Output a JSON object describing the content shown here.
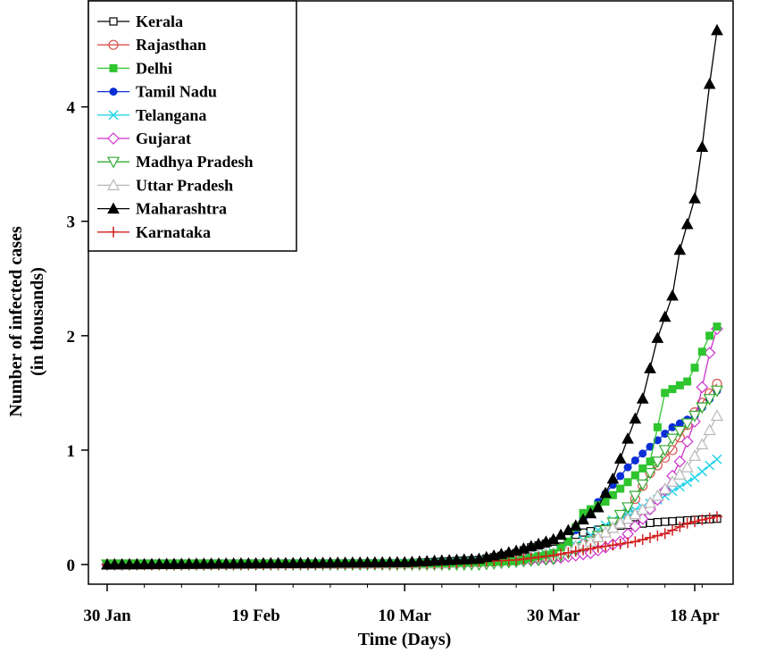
{
  "chart_data": {
    "type": "line",
    "x_axis": {
      "type": "date",
      "label": "Time (Days)",
      "ticks": [
        "30 Jan",
        "19 Feb",
        "10 Mar",
        "30 Mar",
        "18 Apr"
      ],
      "range": [
        "2020-01-30",
        "2020-04-21"
      ]
    },
    "y_axis": {
      "label": "Number of infected cases",
      "label_line2": "(in thousands)",
      "ticks": [
        "0",
        "1",
        "2",
        "3",
        "4"
      ],
      "range": [
        0,
        4.7
      ]
    },
    "grid": false,
    "legend_position": "top-left",
    "series": [
      {
        "name": "Kerala",
        "color": "#000000",
        "marker": "square-open",
        "points": [
          [
            "2020-01-30",
            0
          ],
          [
            "2020-03-10",
            0.01
          ],
          [
            "2020-03-20",
            0.04
          ],
          [
            "2020-03-25",
            0.1
          ],
          [
            "2020-03-27",
            0.15
          ],
          [
            "2020-03-30",
            0.2
          ],
          [
            "2020-04-03",
            0.28
          ],
          [
            "2020-04-08",
            0.34
          ],
          [
            "2020-04-13",
            0.37
          ],
          [
            "2020-04-18",
            0.39
          ],
          [
            "2020-04-21",
            0.4
          ]
        ]
      },
      {
        "name": "Rajasthan",
        "color": "#d9534f",
        "marker": "circle-open",
        "points": [
          [
            "2020-01-30",
            0
          ],
          [
            "2020-03-15",
            0.01
          ],
          [
            "2020-03-25",
            0.04
          ],
          [
            "2020-03-30",
            0.08
          ],
          [
            "2020-04-04",
            0.2
          ],
          [
            "2020-04-07",
            0.33
          ],
          [
            "2020-04-09",
            0.46
          ],
          [
            "2020-04-12",
            0.8
          ],
          [
            "2020-04-15",
            1.0
          ],
          [
            "2020-04-18",
            1.33
          ],
          [
            "2020-04-21",
            1.58
          ]
        ]
      },
      {
        "name": "Delhi",
        "color": "#2ec52e",
        "marker": "square-filled",
        "points": [
          [
            "2020-01-30",
            0
          ],
          [
            "2020-03-15",
            0.01
          ],
          [
            "2020-03-25",
            0.03
          ],
          [
            "2020-03-30",
            0.1
          ],
          [
            "2020-04-01",
            0.2
          ],
          [
            "2020-04-03",
            0.45
          ],
          [
            "2020-04-06",
            0.55
          ],
          [
            "2020-04-09",
            0.72
          ],
          [
            "2020-04-12",
            0.9
          ],
          [
            "2020-04-13",
            1.2
          ],
          [
            "2020-04-14",
            1.5
          ],
          [
            "2020-04-17",
            1.6
          ],
          [
            "2020-04-18",
            1.72
          ],
          [
            "2020-04-20",
            2.0
          ],
          [
            "2020-04-21",
            2.08
          ]
        ]
      },
      {
        "name": "Tamil Nadu",
        "color": "#0b2fd6",
        "marker": "circle-filled",
        "points": [
          [
            "2020-01-30",
            0
          ],
          [
            "2020-03-15",
            0.01
          ],
          [
            "2020-03-25",
            0.03
          ],
          [
            "2020-03-30",
            0.08
          ],
          [
            "2020-04-01",
            0.2
          ],
          [
            "2020-04-03",
            0.4
          ],
          [
            "2020-04-06",
            0.62
          ],
          [
            "2020-04-09",
            0.85
          ],
          [
            "2020-04-12",
            1.03
          ],
          [
            "2020-04-15",
            1.2
          ],
          [
            "2020-04-18",
            1.3
          ],
          [
            "2020-04-21",
            1.52
          ]
        ]
      },
      {
        "name": "Telangana",
        "color": "#29d4e8",
        "marker": "x",
        "points": [
          [
            "2020-01-30",
            0
          ],
          [
            "2020-03-15",
            0.01
          ],
          [
            "2020-03-25",
            0.04
          ],
          [
            "2020-03-30",
            0.1
          ],
          [
            "2020-04-02",
            0.17
          ],
          [
            "2020-04-05",
            0.3
          ],
          [
            "2020-04-08",
            0.43
          ],
          [
            "2020-04-11",
            0.5
          ],
          [
            "2020-04-14",
            0.6
          ],
          [
            "2020-04-18",
            0.76
          ],
          [
            "2020-04-21",
            0.92
          ]
        ]
      },
      {
        "name": "Gujarat",
        "color": "#cc33cc",
        "marker": "diamond-open",
        "points": [
          [
            "2020-01-30",
            0
          ],
          [
            "2020-03-20",
            0.01
          ],
          [
            "2020-03-30",
            0.05
          ],
          [
            "2020-04-04",
            0.1
          ],
          [
            "2020-04-08",
            0.2
          ],
          [
            "2020-04-11",
            0.4
          ],
          [
            "2020-04-14",
            0.65
          ],
          [
            "2020-04-16",
            0.9
          ],
          [
            "2020-04-18",
            1.25
          ],
          [
            "2020-04-20",
            1.85
          ],
          [
            "2020-04-21",
            2.06
          ]
        ]
      },
      {
        "name": "Madhya Pradesh",
        "color": "#33aa33",
        "marker": "triangle-down-open",
        "points": [
          [
            "2020-01-30",
            0
          ],
          [
            "2020-03-20",
            0.0
          ],
          [
            "2020-03-30",
            0.05
          ],
          [
            "2020-04-03",
            0.15
          ],
          [
            "2020-04-06",
            0.3
          ],
          [
            "2020-04-09",
            0.5
          ],
          [
            "2020-04-12",
            0.8
          ],
          [
            "2020-04-15",
            1.1
          ],
          [
            "2020-04-18",
            1.3
          ],
          [
            "2020-04-21",
            1.52
          ]
        ]
      },
      {
        "name": "Uttar Pradesh",
        "color": "#b8b8b8",
        "marker": "triangle-open",
        "points": [
          [
            "2020-01-30",
            0
          ],
          [
            "2020-03-15",
            0.01
          ],
          [
            "2020-03-25",
            0.05
          ],
          [
            "2020-03-30",
            0.1
          ],
          [
            "2020-04-04",
            0.2
          ],
          [
            "2020-04-08",
            0.36
          ],
          [
            "2020-04-11",
            0.48
          ],
          [
            "2020-04-14",
            0.66
          ],
          [
            "2020-04-17",
            0.85
          ],
          [
            "2020-04-19",
            1.05
          ],
          [
            "2020-04-21",
            1.3
          ]
        ]
      },
      {
        "name": "Maharashtra",
        "color": "#000000",
        "marker": "triangle-filled",
        "points": [
          [
            "2020-01-30",
            0
          ],
          [
            "2020-03-10",
            0.02
          ],
          [
            "2020-03-20",
            0.05
          ],
          [
            "2020-03-25",
            0.12
          ],
          [
            "2020-03-30",
            0.22
          ],
          [
            "2020-04-02",
            0.34
          ],
          [
            "2020-04-05",
            0.5
          ],
          [
            "2020-04-07",
            0.75
          ],
          [
            "2020-04-09",
            1.1
          ],
          [
            "2020-04-11",
            1.45
          ],
          [
            "2020-04-13",
            1.98
          ],
          [
            "2020-04-15",
            2.35
          ],
          [
            "2020-04-16",
            2.75
          ],
          [
            "2020-04-18",
            3.2
          ],
          [
            "2020-04-19",
            3.65
          ],
          [
            "2020-04-20",
            4.2
          ],
          [
            "2020-04-21",
            4.67
          ]
        ]
      },
      {
        "name": "Karnataka",
        "color": "#d21f1f",
        "marker": "plus",
        "points": [
          [
            "2020-01-30",
            0
          ],
          [
            "2020-03-15",
            0.01
          ],
          [
            "2020-03-25",
            0.04
          ],
          [
            "2020-03-30",
            0.08
          ],
          [
            "2020-04-05",
            0.15
          ],
          [
            "2020-04-10",
            0.2
          ],
          [
            "2020-04-14",
            0.27
          ],
          [
            "2020-04-17",
            0.36
          ],
          [
            "2020-04-21",
            0.42
          ]
        ]
      }
    ]
  }
}
